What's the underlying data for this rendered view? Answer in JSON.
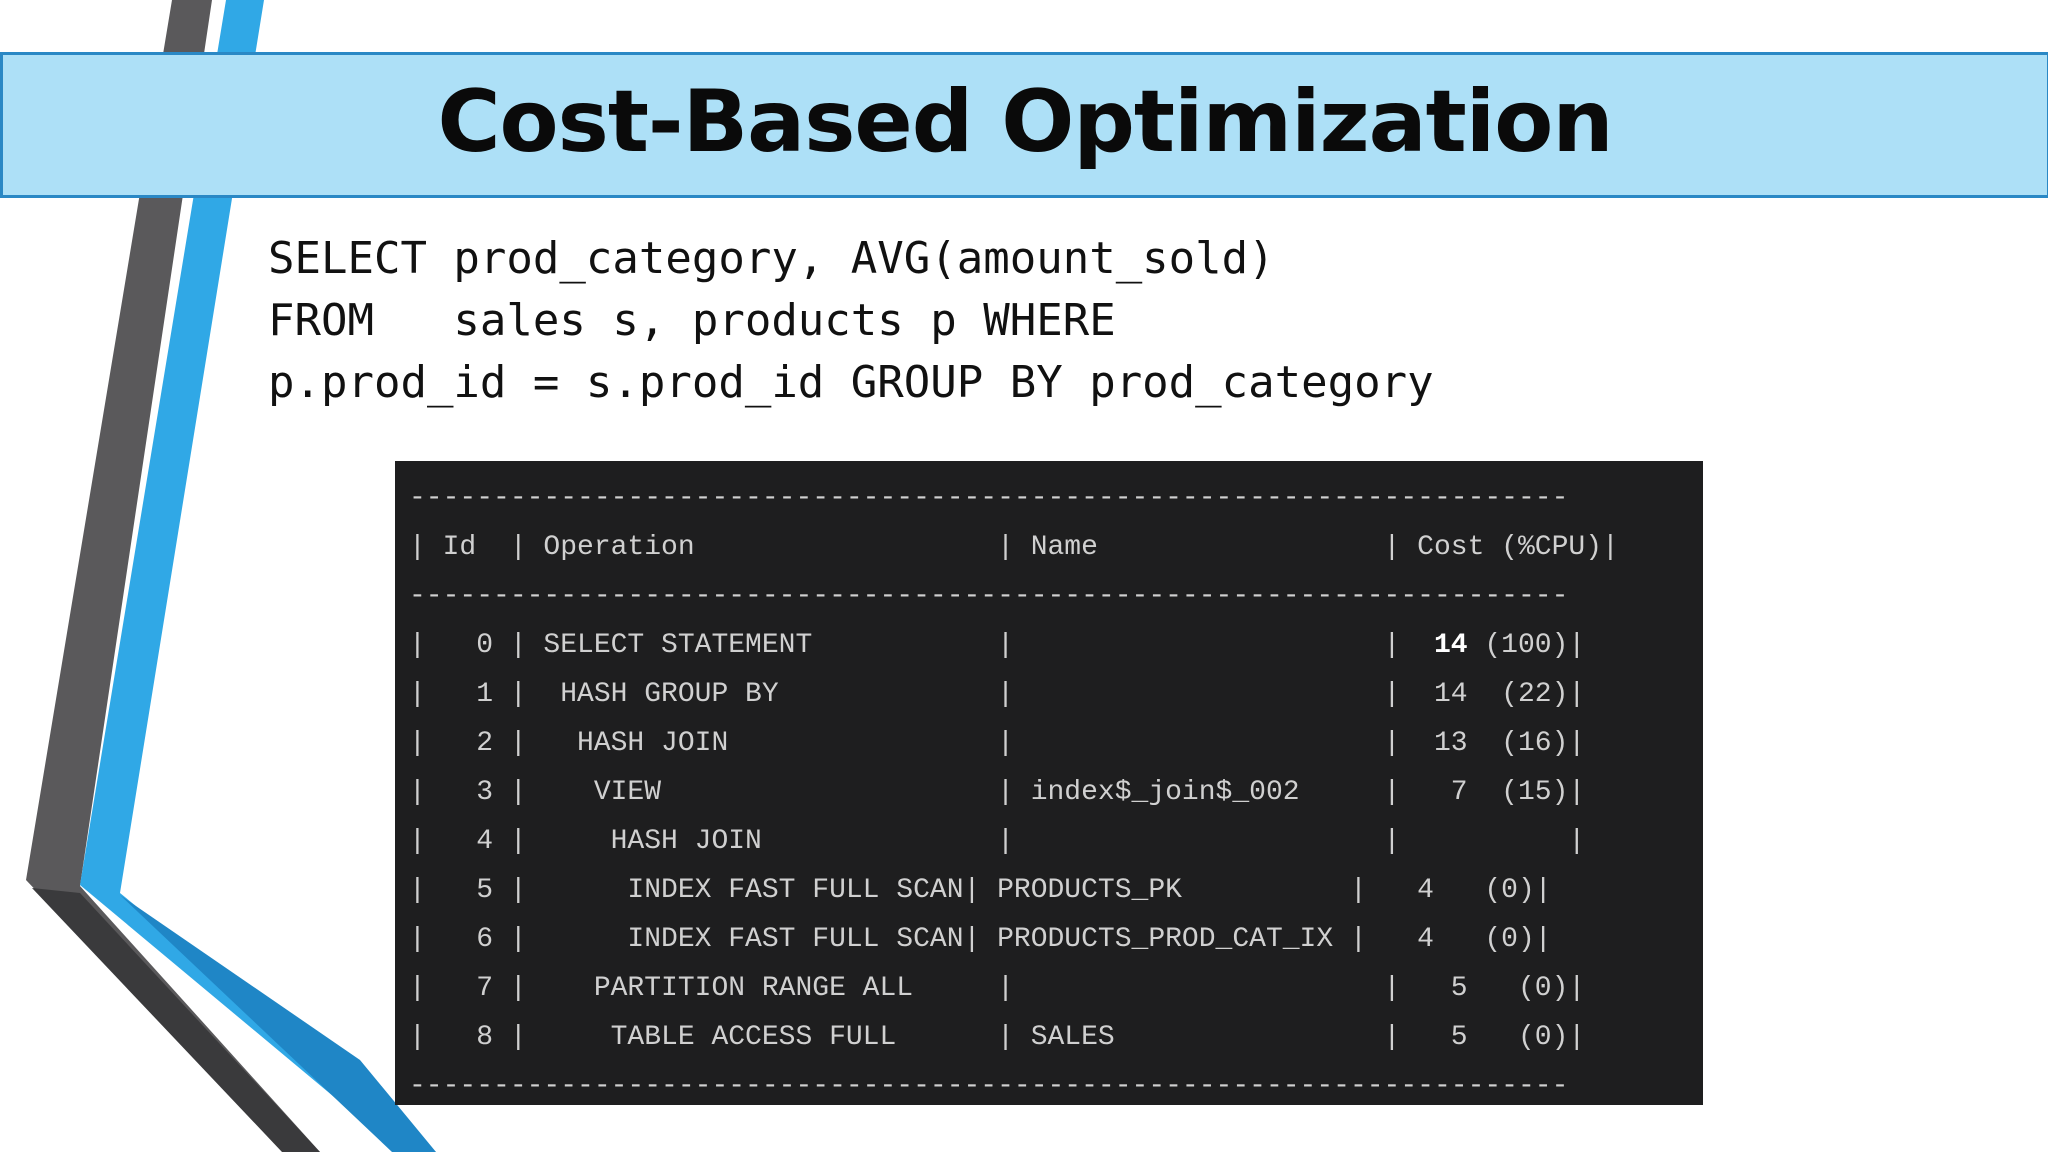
{
  "slide": {
    "title": "Cost-Based Optimization",
    "sql_lines": [
      "SELECT prod_category, AVG(amount_sold)",
      "FROM   sales s, products p WHERE",
      "p.prod_id = s.prod_id GROUP BY prod_category"
    ]
  },
  "plan": {
    "separator": "---------------------------------------------------------------------",
    "header_line": "| Id  | Operation                  | Name                 | Cost (%CPU)|",
    "rows": [
      {
        "prefix": "|   0 | SELECT STATEMENT           |                      |  ",
        "cost": "14",
        "suffix": " (100)|"
      },
      {
        "line": "|   1 |  HASH GROUP BY             |                      |  14  (22)|"
      },
      {
        "line": "|   2 |   HASH JOIN                |                      |  13  (16)|"
      },
      {
        "line": "|   3 |    VIEW                    | index$_join$_002     |   7  (15)|"
      },
      {
        "line": "|   4 |     HASH JOIN              |                      |          |"
      },
      {
        "line": "|   5 |      INDEX FAST FULL SCAN| PRODUCTS_PK          |   4   (0)|"
      },
      {
        "line": "|   6 |      INDEX FAST FULL SCAN| PRODUCTS_PROD_CAT_IX |   4   (0)|"
      },
      {
        "line": "|   7 |    PARTITION RANGE ALL     |                      |   5   (0)|"
      },
      {
        "line": "|   8 |     TABLE ACCESS FULL      | SALES                |   5   (0)|"
      }
    ]
  },
  "colors": {
    "title_band": "#ade0f7",
    "title_border": "#2a88c5",
    "stripe_gray": "#5a595b",
    "stripe_blue": "#30a8e6",
    "stripe_dark_blue": "#1f86c6",
    "plan_background": "#1e1e1f"
  }
}
